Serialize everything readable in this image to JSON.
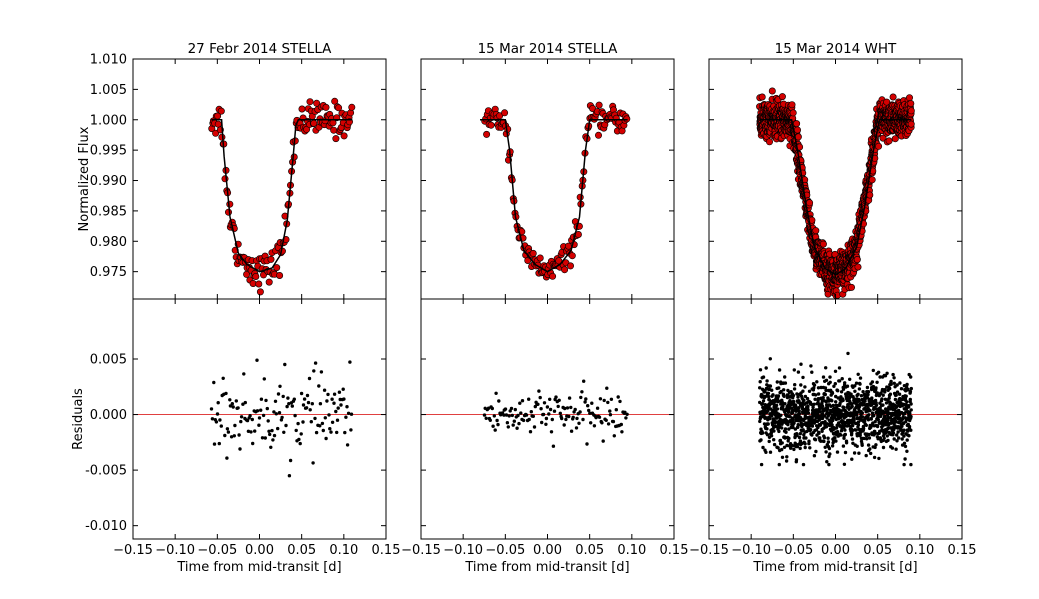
{
  "chart_data": {
    "type": "scatter",
    "xlabel": "Time from mid-transit [d]",
    "ylabel_top": "Normalized Flux",
    "ylabel_bottom": "Residuals",
    "xlim": [
      -0.15,
      0.15
    ],
    "ylim_top": [
      0.9705,
      1.01
    ],
    "ylim_bottom": [
      -0.0112,
      0.0104
    ],
    "xticks": [
      "−0.15",
      "−0.10",
      "−0.05",
      "0.00",
      "0.05",
      "0.10",
      "0.15"
    ],
    "yticks_top": [
      "0.975",
      "0.980",
      "0.985",
      "0.990",
      "0.995",
      "1.000",
      "1.005",
      "1.010"
    ],
    "yticks_bottom": [
      "-0.010",
      "-0.005",
      "0.000",
      "0.005"
    ],
    "colors": {
      "data_points": "#d40000",
      "model_line": "#000000",
      "residual_points": "#000000",
      "zero_line": "#e04040"
    },
    "panels": [
      {
        "title": "27 Febr 2014 STELLA",
        "model": {
          "x": [
            -0.057,
            -0.045,
            -0.042,
            -0.035,
            -0.025,
            -0.015,
            0.0,
            0.015,
            0.025,
            0.033,
            0.04,
            0.043,
            0.046,
            0.11
          ],
          "y": [
            1.0,
            1.0,
            0.994,
            0.984,
            0.978,
            0.9762,
            0.975,
            0.9756,
            0.9778,
            0.9835,
            0.994,
            0.999,
            1.0,
            1.0
          ]
        },
        "flux_points": {
          "x_range": [
            -0.057,
            0.11
          ],
          "count": 150,
          "scatter": 0.0014
        },
        "residual_points": {
          "x_range": [
            -0.057,
            0.11
          ],
          "count": 150,
          "scatter": 0.0017,
          "y_range": [
            -0.0055,
            0.0054
          ]
        }
      },
      {
        "title": "15 Mar 2014 STELLA",
        "model": {
          "x": [
            -0.08,
            -0.05,
            -0.045,
            -0.038,
            -0.028,
            -0.015,
            0.0,
            0.015,
            0.028,
            0.038,
            0.045,
            0.05,
            0.095
          ],
          "y": [
            1.0,
            1.0,
            0.995,
            0.984,
            0.9785,
            0.9762,
            0.975,
            0.9762,
            0.9785,
            0.984,
            0.995,
            1.0,
            1.0
          ]
        },
        "flux_points": {
          "x_range": [
            -0.075,
            0.095
          ],
          "count": 150,
          "scatter": 0.001
        },
        "residual_points": {
          "x_range": [
            -0.075,
            0.095
          ],
          "count": 150,
          "scatter": 0.001,
          "y_range": [
            -0.003,
            0.003
          ]
        }
      },
      {
        "title": "15 Mar 2014 WHT",
        "model": {
          "x": [
            -0.09,
            -0.052,
            -0.045,
            -0.035,
            -0.025,
            -0.012,
            0.0,
            0.012,
            0.025,
            0.035,
            0.045,
            0.052,
            0.09
          ],
          "y": [
            1.0,
            1.0,
            0.995,
            0.986,
            0.979,
            0.9755,
            0.9745,
            0.9755,
            0.979,
            0.986,
            0.995,
            1.0,
            1.0
          ]
        },
        "flux_points": {
          "x_range": [
            -0.09,
            0.09
          ],
          "count": 1400,
          "scatter": 0.0015
        },
        "residual_points": {
          "x_range": [
            -0.09,
            0.09
          ],
          "count": 1400,
          "scatter": 0.0016,
          "y_range": [
            -0.0045,
            0.0055
          ]
        }
      }
    ]
  }
}
